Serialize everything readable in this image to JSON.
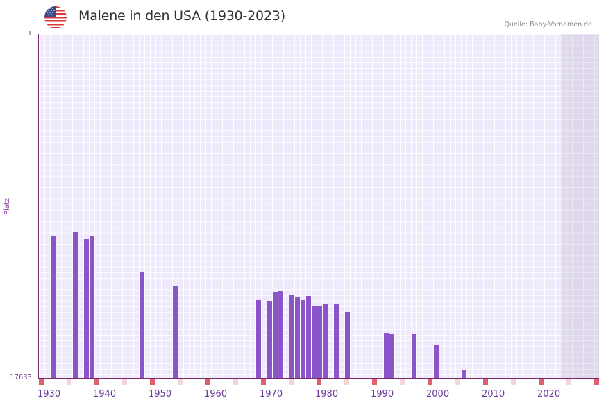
{
  "header": {
    "title": "Malene in den USA (1930-2023)",
    "source": "Quelle: Baby-Vornamen.de",
    "flag_icon": "us-flag-icon"
  },
  "colors": {
    "bar": "#8b55c9",
    "axis": "#7a2a6a",
    "marker_red": "#e06070",
    "marker_pink": "#f5d5dc",
    "plot_bg": "#efeafb"
  },
  "chart_data": {
    "type": "bar",
    "title": "Malene in den USA (1930-2023)",
    "xlabel": "",
    "ylabel": "Platz",
    "y_axis_inverted": true,
    "ylim": [
      1,
      17633
    ],
    "y_tick_labels": [
      "1",
      "17633"
    ],
    "x_tick_labels": [
      "1930",
      "1940",
      "1950",
      "1960",
      "1970",
      "1980",
      "1990",
      "2000",
      "2010",
      "2020"
    ],
    "xlim": [
      1928,
      2028
    ],
    "grid": true,
    "shaded_region": [
      2022,
      2028
    ],
    "series": [
      {
        "name": "Platz",
        "points": [
          {
            "year": 1930,
            "rank": 10381
          },
          {
            "year": 1934,
            "rank": 10168
          },
          {
            "year": 1936,
            "rank": 10488
          },
          {
            "year": 1937,
            "rank": 10346
          },
          {
            "year": 1946,
            "rank": 12230
          },
          {
            "year": 1952,
            "rank": 12905
          },
          {
            "year": 1967,
            "rank": 13616
          },
          {
            "year": 1969,
            "rank": 13687
          },
          {
            "year": 1970,
            "rank": 13225
          },
          {
            "year": 1971,
            "rank": 13190
          },
          {
            "year": 1973,
            "rank": 13403
          },
          {
            "year": 1974,
            "rank": 13510
          },
          {
            "year": 1975,
            "rank": 13616
          },
          {
            "year": 1976,
            "rank": 13439
          },
          {
            "year": 1977,
            "rank": 13972
          },
          {
            "year": 1978,
            "rank": 13972
          },
          {
            "year": 1979,
            "rank": 13865
          },
          {
            "year": 1981,
            "rank": 13830
          },
          {
            "year": 1983,
            "rank": 14256
          },
          {
            "year": 1990,
            "rank": 15322
          },
          {
            "year": 1991,
            "rank": 15358
          },
          {
            "year": 1995,
            "rank": 15358
          },
          {
            "year": 1999,
            "rank": 15962
          },
          {
            "year": 2004,
            "rank": 17206
          }
        ]
      }
    ],
    "markers": {
      "red_years": [
        1928,
        1938,
        1948,
        1958,
        1968,
        1978,
        1988,
        1998,
        2008,
        2018,
        2028
      ],
      "pink_years": [
        1933,
        1943,
        1953,
        1963,
        1973,
        1983,
        1993,
        2003,
        2013,
        2023
      ]
    }
  }
}
